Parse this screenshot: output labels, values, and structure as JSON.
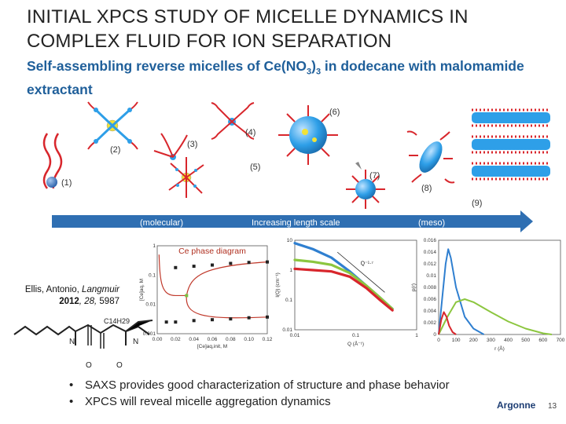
{
  "slide": {
    "title": "INITIAL XPCS STUDY OF MICELLE DYNAMICS IN COMPLEX FLUID FOR ION SEPARATION",
    "subtitle_part1": "Self-assembling reverse micelles of Ce(NO",
    "subtitle_sub1": "3",
    "subtitle_part2": ")",
    "subtitle_sub2": "3",
    "subtitle_part3": " in dodecane with malomamide extractant",
    "page_number": "13",
    "logo_text": "Argonne"
  },
  "schematic": {
    "labels": [
      "(1)",
      "(2)",
      "(3)",
      "(4)",
      "(5)",
      "(6)",
      "(7)",
      "(8)",
      "(9)"
    ],
    "arrow_left": "(molecular)",
    "arrow_center": "Increasing length scale",
    "arrow_right": "(meso)",
    "colors": {
      "arrow": "#2f6fb2",
      "micelle_core": "#2e9fe8",
      "chains": "#d8262c",
      "ion": "#f2e236"
    }
  },
  "citation": {
    "authors": "Ellis, Antonio, ",
    "journal": "Langmuir",
    "year": "2012",
    "volume": ", 28, ",
    "page": "5987"
  },
  "molecule": {
    "chain_label": "C14H29",
    "atoms": [
      "N",
      "N",
      "O",
      "O"
    ]
  },
  "bullets": [
    "SAXS provides good characterization of structure and phase behavior",
    "XPCS will reveal micelle aggregation dynamics"
  ],
  "chart_data": [
    {
      "type": "scatter",
      "title": "Ce phase diagram",
      "xlabel": "[Ce]aq,init, M",
      "ylabel": "[Ce]aq, M",
      "x_ticks": [
        "0.00",
        "0.02",
        "0.04",
        "0.06",
        "0.08",
        "0.10",
        "0.12"
      ],
      "y_ticks": [
        "0.001",
        "0.01",
        "0.1",
        "1"
      ],
      "xlim": [
        0,
        0.12
      ],
      "ylim_log10": [
        -3,
        0
      ],
      "yscale": "log",
      "series": [
        {
          "points": [
            [
              0.02,
              0.18
            ],
            [
              0.04,
              0.2
            ],
            [
              0.06,
              0.22
            ],
            [
              0.08,
              0.25
            ],
            [
              0.1,
              0.27
            ],
            [
              0.12,
              0.28
            ]
          ],
          "color": "#222222"
        },
        {
          "points": [
            [
              0.01,
              0.0025
            ],
            [
              0.02,
              0.0025
            ],
            [
              0.04,
              0.0028
            ],
            [
              0.06,
              0.003
            ],
            [
              0.08,
              0.0032
            ],
            [
              0.1,
              0.0035
            ],
            [
              0.12,
              0.0037
            ]
          ],
          "color": "#222222"
        },
        {
          "points": [
            [
              0.032,
              0.02
            ]
          ],
          "color": "#7cc142"
        }
      ],
      "curve_color": "#c0392b"
    },
    {
      "type": "line",
      "xlabel": "Q (Å⁻¹)",
      "ylabel": "I(Q) (cm⁻¹)",
      "yscale": "log",
      "xscale": "log",
      "x_ticks": [
        "0.01",
        "0.1",
        "1"
      ],
      "y_ticks": [
        "10",
        "1",
        "0.1",
        "0.01"
      ],
      "xlim_log10": [
        -2,
        0
      ],
      "ylim_log10": [
        -2,
        1
      ],
      "annotation": "Q⁻¹·⁷",
      "series": [
        {
          "color": "#2f7fd0",
          "points": [
            [
              0.01,
              8
            ],
            [
              0.02,
              5
            ],
            [
              0.04,
              2.6
            ],
            [
              0.08,
              0.9
            ],
            [
              0.15,
              0.3
            ],
            [
              0.25,
              0.12
            ],
            [
              0.4,
              0.05
            ]
          ]
        },
        {
          "color": "#8cc63f",
          "points": [
            [
              0.01,
              2.2
            ],
            [
              0.02,
              1.9
            ],
            [
              0.04,
              1.5
            ],
            [
              0.08,
              0.8
            ],
            [
              0.15,
              0.3
            ],
            [
              0.25,
              0.12
            ],
            [
              0.4,
              0.05
            ]
          ]
        },
        {
          "color": "#d8262c",
          "points": [
            [
              0.01,
              1.1
            ],
            [
              0.02,
              1.0
            ],
            [
              0.04,
              0.9
            ],
            [
              0.08,
              0.6
            ],
            [
              0.15,
              0.25
            ],
            [
              0.25,
              0.1
            ],
            [
              0.4,
              0.045
            ]
          ]
        }
      ]
    },
    {
      "type": "line",
      "xlabel": "r (Å)",
      "ylabel": "p(r)",
      "xlim": [
        0,
        700
      ],
      "ylim": [
        0,
        0.016
      ],
      "x_ticks": [
        "0",
        "100",
        "200",
        "300",
        "400",
        "500",
        "600",
        "700"
      ],
      "y_ticks": [
        "0",
        "0.002",
        "0.004",
        "0.006",
        "0.008",
        "0.01",
        "0.012",
        "0.014",
        "0.016"
      ],
      "series": [
        {
          "color": "#2f7fd0",
          "points": [
            [
              0,
              0
            ],
            [
              20,
              0.006
            ],
            [
              40,
              0.012
            ],
            [
              55,
              0.0145
            ],
            [
              70,
              0.013
            ],
            [
              100,
              0.008
            ],
            [
              150,
              0.003
            ],
            [
              200,
              0.001
            ],
            [
              260,
              0
            ]
          ]
        },
        {
          "color": "#8cc63f",
          "points": [
            [
              0,
              0
            ],
            [
              50,
              0.003
            ],
            [
              100,
              0.0055
            ],
            [
              150,
              0.006
            ],
            [
              200,
              0.0055
            ],
            [
              300,
              0.0038
            ],
            [
              400,
              0.0022
            ],
            [
              500,
              0.001
            ],
            [
              600,
              0.0002
            ],
            [
              650,
              0
            ]
          ]
        },
        {
          "color": "#d8262c",
          "points": [
            [
              0,
              0
            ],
            [
              15,
              0.0025
            ],
            [
              30,
              0.0038
            ],
            [
              45,
              0.003
            ],
            [
              60,
              0.0015
            ],
            [
              80,
              0.0004
            ],
            [
              100,
              0
            ]
          ]
        }
      ]
    }
  ]
}
